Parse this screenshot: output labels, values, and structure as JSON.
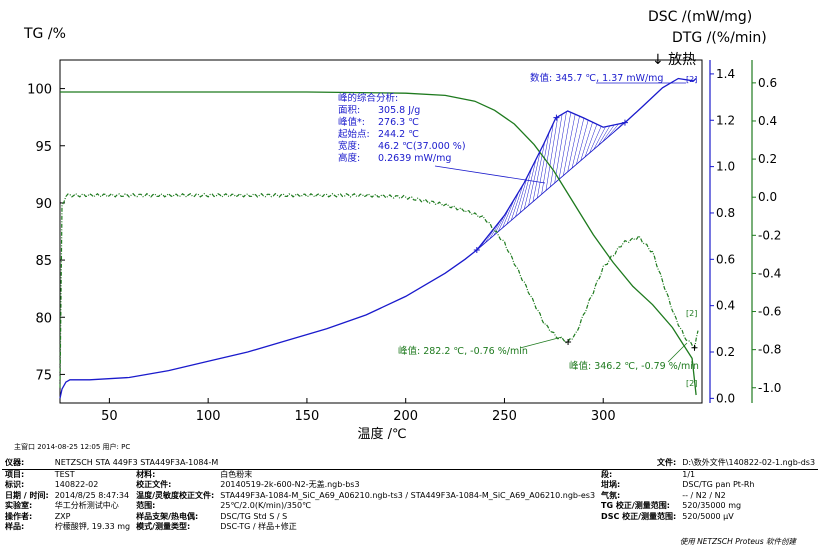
{
  "chart_data": {
    "type": "line",
    "xlabel": "温度 /℃",
    "xlim": [
      25,
      350
    ],
    "x_ticks": [
      50,
      100,
      150,
      200,
      250,
      300
    ],
    "axes": {
      "tg": {
        "label": "TG /%",
        "lim": [
          72.5,
          102.5
        ],
        "ticks": [
          75,
          80,
          85,
          90,
          95,
          100
        ],
        "color": "#000000"
      },
      "dsc": {
        "label": "DSC /(mW/mg)",
        "lim": [
          -0.02,
          1.46
        ],
        "ticks": [
          "0.0",
          "0.2",
          "0.4",
          "0.6",
          "0.8",
          "1.0",
          "1.2",
          "1.4"
        ],
        "color": "#1a1acc",
        "exo_label": "↓ 放热"
      },
      "dtg": {
        "label": "DTG /(%/min)",
        "lim": [
          -1.08,
          0.72
        ],
        "ticks": [
          "0.6",
          "0.4",
          "0.2",
          "0.0",
          "-0.2",
          "-0.4",
          "-0.6",
          "-0.8",
          "-1.0"
        ],
        "color": "#1e7a1e"
      }
    },
    "series": [
      {
        "name": "TG",
        "axis": "tg",
        "color": "#1e7a1e",
        "x": [
          25,
          100,
          150,
          200,
          220,
          235,
          245,
          255,
          265,
          275,
          285,
          295,
          305,
          315,
          325,
          335,
          345,
          347
        ],
        "y": [
          99.7,
          99.7,
          99.7,
          99.6,
          99.4,
          98.9,
          98.1,
          96.9,
          95.1,
          92.8,
          90.0,
          87.2,
          84.8,
          82.7,
          81.1,
          79.1,
          76.4,
          73.2
        ]
      },
      {
        "name": "DSC",
        "axis": "dsc",
        "color": "#1a1acc",
        "x": [
          25,
          26,
          28,
          30,
          40,
          60,
          80,
          100,
          120,
          140,
          160,
          180,
          200,
          210,
          220,
          230,
          236,
          250,
          260,
          270,
          276,
          282,
          290,
          300,
          311,
          320,
          330,
          338,
          345.7,
          347
        ],
        "y": [
          0.0,
          0.04,
          0.07,
          0.08,
          0.08,
          0.09,
          0.12,
          0.16,
          0.2,
          0.25,
          0.3,
          0.36,
          0.44,
          0.49,
          0.54,
          0.6,
          0.64,
          0.79,
          0.93,
          1.1,
          1.21,
          1.24,
          1.21,
          1.17,
          1.19,
          1.26,
          1.34,
          1.38,
          1.37,
          1.38
        ]
      },
      {
        "name": "DTG",
        "axis": "dtg",
        "color": "#1e7a1e",
        "x": [
          25,
          26,
          28,
          40,
          60,
          80,
          100,
          120,
          140,
          160,
          180,
          200,
          210,
          220,
          230,
          240,
          250,
          260,
          270,
          276,
          282.2,
          286,
          292,
          300,
          310,
          318,
          325,
          330,
          336,
          341,
          346.2,
          348
        ],
        "y": [
          -1.0,
          -0.05,
          0.01,
          0.01,
          0.01,
          0.01,
          0.01,
          0.01,
          0.01,
          0.01,
          0.01,
          0.0,
          -0.02,
          -0.04,
          -0.07,
          -0.11,
          -0.24,
          -0.45,
          -0.66,
          -0.73,
          -0.76,
          -0.72,
          -0.57,
          -0.37,
          -0.24,
          -0.21,
          -0.29,
          -0.44,
          -0.62,
          -0.73,
          -0.79,
          -0.7
        ]
      }
    ],
    "analysis_box": {
      "title": "峰的综合分析:",
      "rows": [
        {
          "k": "面积:",
          "v": "305.8 J/g"
        },
        {
          "k": "峰值*:",
          "v": "276.3 ℃"
        },
        {
          "k": "起始点:",
          "v": "244.2 ℃"
        },
        {
          "k": "宽度:",
          "v": "46.2 ℃(37.000 %)"
        },
        {
          "k": "高度:",
          "v": "0.2639 mW/mg"
        }
      ]
    },
    "annotations": {
      "dsc_value": "数值: 345.7 ℃, 1.37 mW/mg",
      "dtg_peak1": "峰值: 282.2 ℃, -0.76 %/min",
      "dtg_peak2": "峰值: 346.2 ℃, -0.79 %/min",
      "tag_2": "[2]"
    }
  },
  "meta_line": "主窗口   2014-08-25 12:05   用户: PC",
  "info": {
    "instrument_k": "仪器:",
    "instrument_v": "NETZSCH STA 449F3 STA449F3A-1084-M",
    "file_k": "文件:",
    "file_v": "D:\\数外文件\\140822-02-1.ngb-ds3",
    "rows": [
      [
        "项目:",
        "TEST",
        "材料:",
        "白色粉末",
        "段:",
        "1/1"
      ],
      [
        "标识:",
        "140822-02",
        "校正文件:",
        "20140519-2k-600-N2-无盖.ngb-bs3",
        "坩埚:",
        "DSC/TG pan Pt-Rh"
      ],
      [
        "日期 / 时间:",
        "2014/8/25 8:47:34",
        "温度/灵敏度校正文件:",
        "STA449F3A-1084-M_SiC_A69_A06210.ngb-ts3 / STA449F3A-1084-M_SiC_A69_A06210.ngb-es3",
        "气氛:",
        "-- / N2 / N2"
      ],
      [
        "实验室:",
        "华工分析测试中心",
        "范围:",
        "25℃/2.0(K/min)/350℃",
        "TG 校正/测量范围:",
        "520/35000 mg"
      ],
      [
        "操作者:",
        "ZXP",
        "样品支架/热电偶:",
        "DSC/TG Std S / S",
        "DSC 校正/测量范围:",
        "520/5000 μV"
      ],
      [
        "样品:",
        "柠檬酸钾, 19.33 mg",
        "模式/测量类型:",
        "DSC-TG / 样品+修正",
        "",
        ""
      ]
    ]
  },
  "footer_note": "使用 NETZSCH Proteus 软件创建"
}
